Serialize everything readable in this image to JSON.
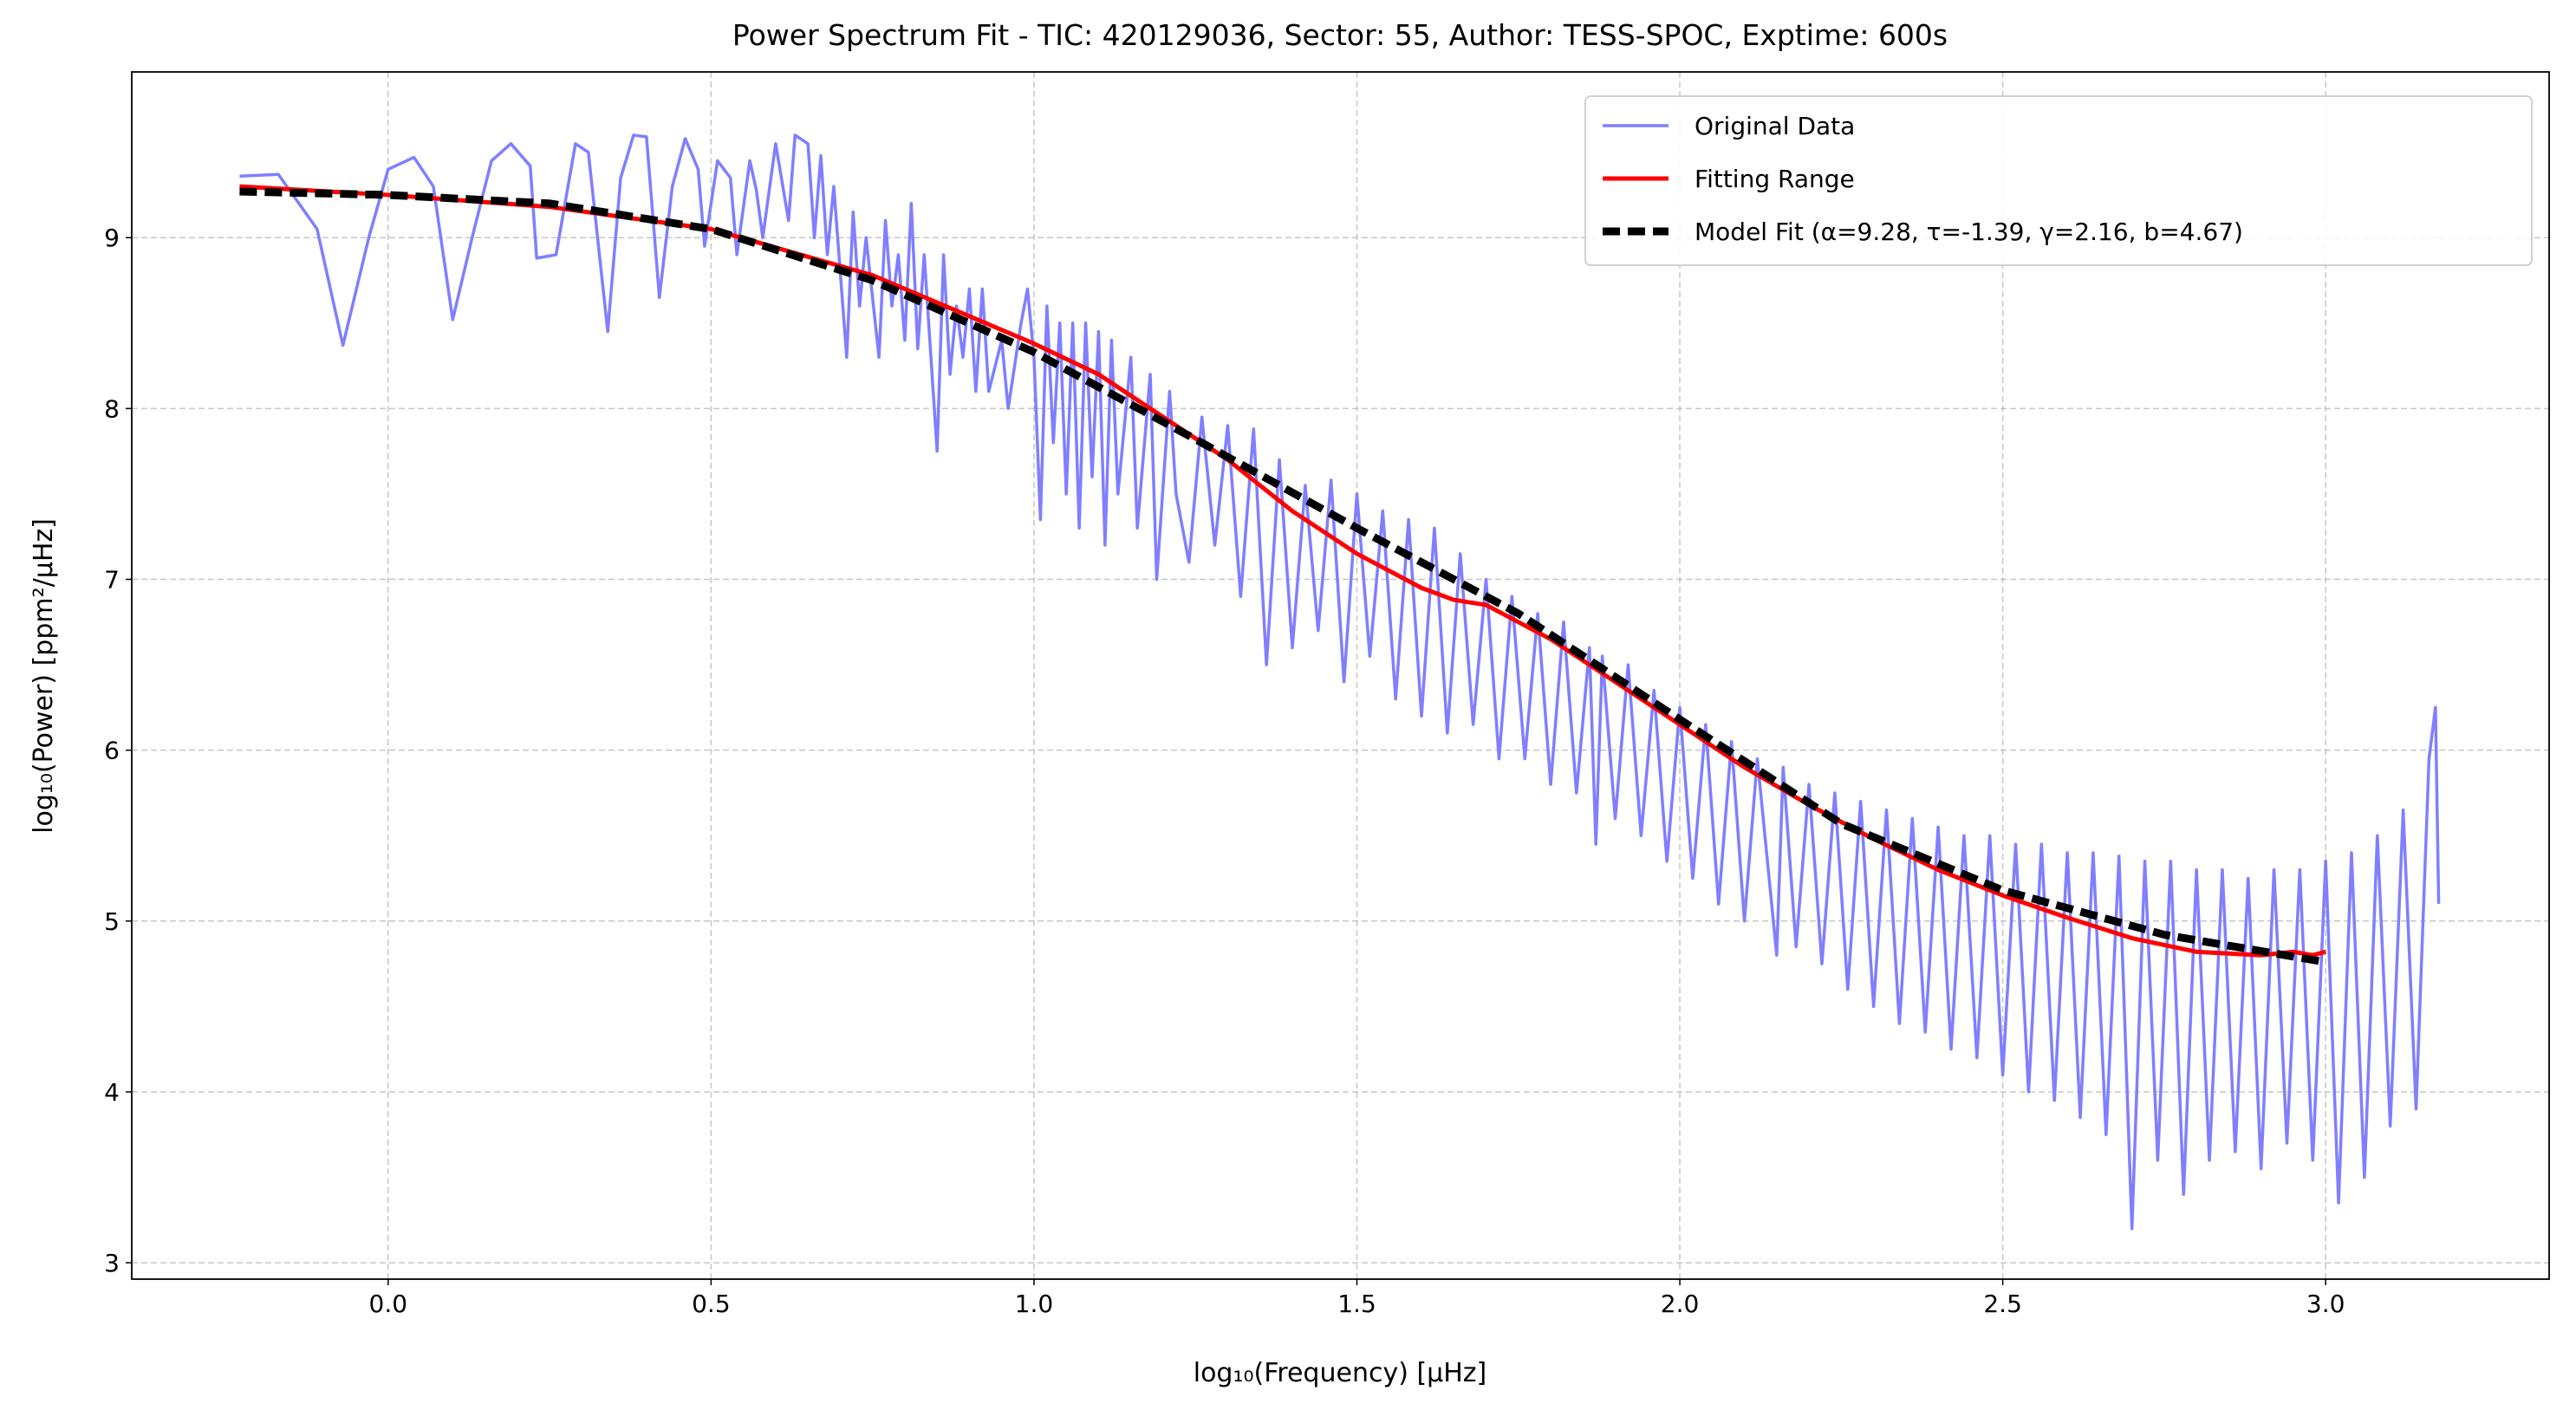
{
  "chart_data": {
    "type": "line",
    "title": "Power Spectrum Fit - TIC: 420129036, Sector: 55, Author: TESS-SPOC, Exptime: 600s",
    "x_label": "log₁₀(Frequency) [μHz]",
    "y_label": "log₁₀(Power) [ppm²/μHz]",
    "xlim": [
      -0.397,
      3.346
    ],
    "ylim": [
      2.904,
      9.97
    ],
    "xticks": [
      {
        "value": 0,
        "label": "0.0"
      },
      0.5,
      {
        "value": 1,
        "label": "1.0"
      },
      1.5,
      {
        "value": 2,
        "label": "2.0"
      },
      2.5,
      {
        "value": 3,
        "label": "3.0"
      }
    ],
    "yticks": [
      3,
      4,
      5,
      6,
      7,
      8,
      9
    ],
    "grid": true,
    "legend": "upper right",
    "series": [
      {
        "name": "Original Data",
        "color": "#7f7fff",
        "linestyle": "solid",
        "x": [
          -0.23,
          -0.17,
          -0.11,
          -0.07,
          -0.03,
          0.0,
          0.04,
          0.07,
          0.1,
          0.13,
          0.16,
          0.19,
          0.22,
          0.23,
          0.26,
          0.29,
          0.31,
          0.34,
          0.36,
          0.38,
          0.4,
          0.42,
          0.44,
          0.46,
          0.48,
          0.49,
          0.51,
          0.53,
          0.54,
          0.56,
          0.57,
          0.58,
          0.6,
          0.62,
          0.63,
          0.65,
          0.66,
          0.67,
          0.68,
          0.69,
          0.71,
          0.72,
          0.73,
          0.74,
          0.76,
          0.77,
          0.78,
          0.79,
          0.8,
          0.81,
          0.82,
          0.83,
          0.85,
          0.86,
          0.87,
          0.88,
          0.89,
          0.9,
          0.91,
          0.92,
          0.93,
          0.95,
          0.96,
          0.98,
          0.99,
          1.0,
          1.01,
          1.02,
          1.03,
          1.04,
          1.05,
          1.06,
          1.07,
          1.08,
          1.09,
          1.1,
          1.11,
          1.12,
          1.13,
          1.15,
          1.16,
          1.18,
          1.19,
          1.21,
          1.22,
          1.24,
          1.26,
          1.28,
          1.3,
          1.32,
          1.34,
          1.36,
          1.38,
          1.4,
          1.42,
          1.44,
          1.46,
          1.48,
          1.5,
          1.52,
          1.54,
          1.56,
          1.58,
          1.6,
          1.62,
          1.64,
          1.66,
          1.68,
          1.7,
          1.72,
          1.74,
          1.76,
          1.78,
          1.8,
          1.82,
          1.84,
          1.86,
          1.87,
          1.88,
          1.9,
          1.92,
          1.94,
          1.96,
          1.98,
          2.0,
          2.02,
          2.04,
          2.06,
          2.08,
          2.1,
          2.12,
          2.15,
          2.16,
          2.18,
          2.2,
          2.22,
          2.24,
          2.26,
          2.28,
          2.3,
          2.32,
          2.34,
          2.36,
          2.38,
          2.4,
          2.42,
          2.44,
          2.46,
          2.48,
          2.5,
          2.52,
          2.54,
          2.56,
          2.58,
          2.6,
          2.62,
          2.64,
          2.66,
          2.68,
          2.7,
          2.72,
          2.74,
          2.76,
          2.78,
          2.8,
          2.82,
          2.84,
          2.86,
          2.88,
          2.9,
          2.92,
          2.94,
          2.96,
          2.98,
          3.0,
          3.02,
          3.04,
          3.06,
          3.08,
          3.1,
          3.12,
          3.14,
          3.16,
          3.17,
          3.175
        ],
        "values": [
          9.36,
          9.37,
          9.05,
          8.37,
          9.0,
          9.4,
          9.47,
          9.3,
          8.52,
          9.0,
          9.45,
          9.55,
          9.42,
          8.88,
          8.9,
          9.55,
          9.5,
          8.45,
          9.35,
          9.6,
          9.59,
          8.65,
          9.3,
          9.58,
          9.4,
          8.95,
          9.45,
          9.35,
          8.9,
          9.45,
          9.28,
          9.0,
          9.55,
          9.1,
          9.6,
          9.55,
          9.0,
          9.48,
          8.9,
          9.3,
          8.3,
          9.15,
          8.6,
          9.0,
          8.3,
          9.1,
          8.6,
          8.9,
          8.4,
          9.2,
          8.35,
          8.9,
          7.75,
          8.9,
          8.2,
          8.6,
          8.3,
          8.7,
          8.1,
          8.7,
          8.1,
          8.4,
          8.0,
          8.5,
          8.7,
          8.3,
          7.35,
          8.6,
          7.8,
          8.5,
          7.5,
          8.5,
          7.3,
          8.5,
          7.6,
          8.45,
          7.2,
          8.4,
          7.5,
          8.3,
          7.3,
          8.2,
          7.0,
          8.1,
          7.5,
          7.1,
          7.95,
          7.2,
          7.9,
          6.9,
          7.88,
          6.5,
          7.7,
          6.6,
          7.55,
          6.7,
          7.58,
          6.4,
          7.5,
          6.55,
          7.4,
          6.3,
          7.35,
          6.2,
          7.3,
          6.1,
          7.15,
          6.15,
          7.0,
          5.95,
          6.9,
          5.95,
          6.8,
          5.8,
          6.75,
          5.75,
          6.6,
          5.45,
          6.55,
          5.6,
          6.5,
          5.5,
          6.35,
          5.35,
          6.25,
          5.25,
          6.15,
          5.1,
          6.05,
          5.0,
          5.95,
          4.8,
          5.9,
          4.85,
          5.8,
          4.75,
          5.75,
          4.6,
          5.7,
          4.5,
          5.65,
          4.4,
          5.6,
          4.35,
          5.55,
          4.25,
          5.5,
          4.2,
          5.5,
          4.1,
          5.45,
          4.0,
          5.45,
          3.95,
          5.4,
          3.85,
          5.4,
          3.75,
          5.38,
          3.2,
          5.35,
          3.6,
          5.35,
          3.4,
          5.3,
          3.6,
          5.3,
          3.65,
          5.25,
          3.55,
          5.3,
          3.7,
          5.3,
          3.6,
          5.35,
          3.35,
          5.4,
          3.5,
          5.5,
          3.8,
          5.65,
          3.9,
          5.95,
          6.25,
          5.1
        ]
      },
      {
        "name": "Fitting Range",
        "color": "#ff0000",
        "linestyle": "solid",
        "x": [
          -0.23,
          0.0,
          0.25,
          0.5,
          0.75,
          1.0,
          1.1,
          1.2,
          1.3,
          1.4,
          1.5,
          1.6,
          1.65,
          1.7,
          1.8,
          1.9,
          2.0,
          2.1,
          2.2,
          2.3,
          2.4,
          2.5,
          2.6,
          2.7,
          2.8,
          2.9,
          2.95,
          2.98,
          3.0
        ],
        "values": [
          9.3,
          9.25,
          9.18,
          9.05,
          8.78,
          8.38,
          8.2,
          7.95,
          7.7,
          7.4,
          7.15,
          6.95,
          6.88,
          6.85,
          6.65,
          6.4,
          6.15,
          5.9,
          5.68,
          5.48,
          5.3,
          5.15,
          5.02,
          4.9,
          4.82,
          4.8,
          4.82,
          4.8,
          4.82
        ]
      },
      {
        "name": "Model Fit (α=9.28, τ=-1.39, γ=2.16, b=4.67)",
        "color": "#000000",
        "linestyle": "dashed",
        "x": [
          -0.23,
          0.0,
          0.25,
          0.5,
          0.75,
          1.0,
          1.25,
          1.5,
          1.75,
          2.0,
          2.25,
          2.5,
          2.75,
          3.0
        ],
        "values": [
          9.27,
          9.25,
          9.2,
          9.05,
          8.75,
          8.33,
          7.82,
          7.3,
          6.8,
          6.18,
          5.57,
          5.18,
          4.92,
          4.76
        ]
      }
    ]
  }
}
